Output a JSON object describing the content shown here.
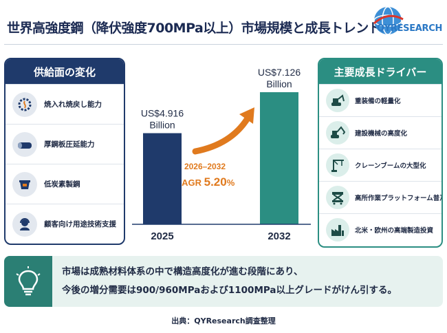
{
  "title": "世界高強度鋼（降伏強度700MPa以上）市場規模と成長トレンド",
  "logo": {
    "text": "QYRESEARCH"
  },
  "supply_panel": {
    "heading": "供給面の変化",
    "items": [
      {
        "label": "焼入れ焼戻し能力",
        "icon": "furnace-gear-icon"
      },
      {
        "label": "厚鋼板圧延能力",
        "icon": "steel-roll-icon"
      },
      {
        "label": "低炭素製鋼",
        "icon": "ladle-icon"
      },
      {
        "label": "顧客向け用途技術支援",
        "icon": "support-headset-icon"
      }
    ]
  },
  "drivers_panel": {
    "heading": "主要成長ドライバー",
    "items": [
      {
        "label": "重装備の軽量化",
        "icon": "excavator-icon"
      },
      {
        "label": "建設機械の高度化",
        "icon": "construction-machine-icon"
      },
      {
        "label": "クレーンブームの大型化",
        "icon": "crane-icon"
      },
      {
        "label": "高所作業プラットフォーム普及",
        "icon": "aerial-platform-icon"
      },
      {
        "label": "北米・欧州の高端製造投資",
        "icon": "factory-icon"
      }
    ]
  },
  "chart_data": {
    "type": "bar",
    "categories": [
      "2025",
      "2032"
    ],
    "values": [
      4.916,
      7.126
    ],
    "value_labels": [
      [
        "US$4.916",
        "Billion"
      ],
      [
        "US$7.126",
        "Billion"
      ]
    ],
    "colors": [
      "#1f3a6b",
      "#2b8e82"
    ],
    "ylim": [
      0,
      7.126
    ],
    "cagr": {
      "range": "2026–2032",
      "prefix": "CAGR ",
      "value": "5.20",
      "unit": "%",
      "color": "#e07a1e"
    }
  },
  "summary": {
    "line1": "市場は成熟材料体系の中で構造高度化が進む段階にあり、",
    "line2": "今後の増分需要は900/960MPaおよび1100MPa以上グレードがけん引する。",
    "icon": "lightbulb-icon"
  },
  "source": "出典：QYResearch調査整理"
}
